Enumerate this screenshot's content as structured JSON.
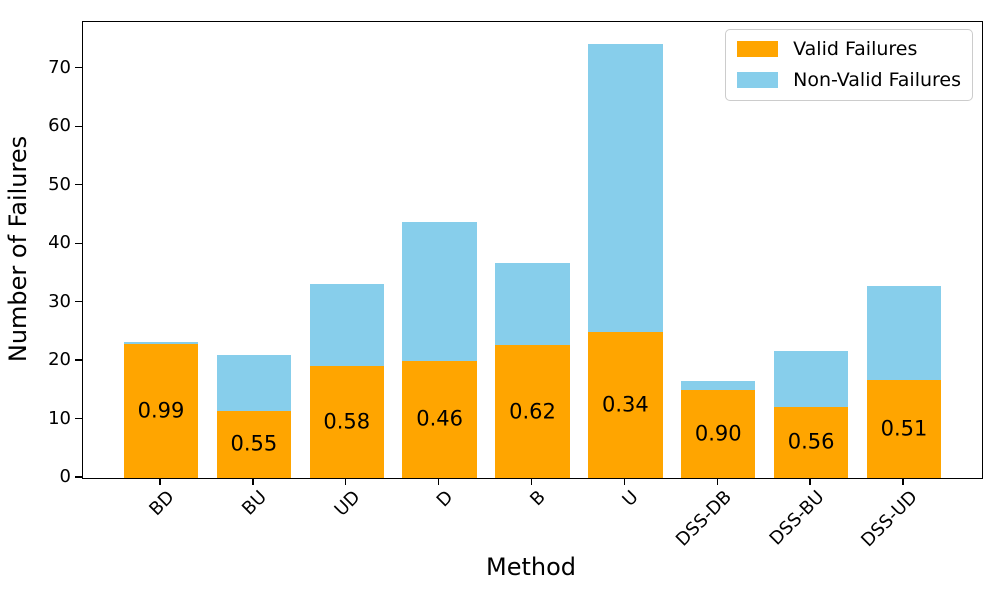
{
  "chart_data": {
    "type": "bar",
    "stacked": true,
    "title": "",
    "xlabel": "Method",
    "ylabel": "Number of Failures",
    "categories": [
      "BD",
      "BU",
      "UD",
      "D",
      "B",
      "U",
      "DSS-DB",
      "DSS-BU",
      "DSS-UD"
    ],
    "series": [
      {
        "name": "Valid Failures",
        "color": "#FFA500",
        "values": [
          22.9,
          11.5,
          19.2,
          20.1,
          22.7,
          25.0,
          15.0,
          12.2,
          16.7
        ]
      },
      {
        "name": "Non-Valid Failures",
        "color": "#87CEEB",
        "values": [
          0.3,
          9.5,
          14.0,
          23.7,
          14.0,
          49.3,
          1.6,
          9.5,
          16.1
        ]
      }
    ],
    "bar_totals": [
      23.2,
      21.0,
      33.2,
      43.8,
      36.7,
      74.3,
      16.6,
      21.7,
      32.8
    ],
    "bar_labels": [
      "0.99",
      "0.55",
      "0.58",
      "0.46",
      "0.62",
      "0.34",
      "0.90",
      "0.56",
      "0.51"
    ],
    "yticks": [
      0,
      10,
      20,
      30,
      40,
      50,
      60,
      70
    ],
    "ylim": [
      0,
      78
    ],
    "grid": false,
    "legend": {
      "position": "upper right"
    },
    "frame_color": "#000000",
    "legend_border_color": "#cccccc",
    "text_color": "#000000"
  }
}
